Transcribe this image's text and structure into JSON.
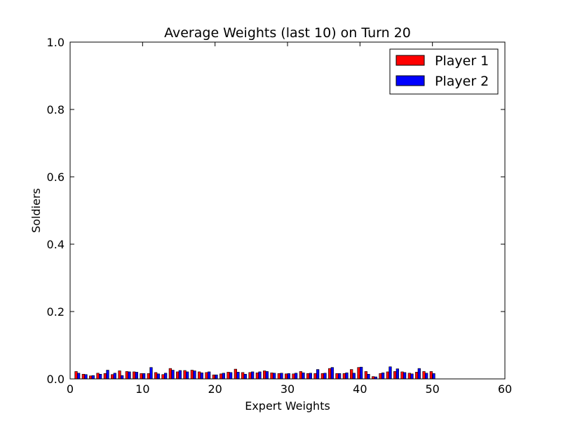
{
  "chart_data": {
    "type": "bar",
    "title": "Average Weights (last 10) on Turn 20",
    "xlabel": "Expert Weights",
    "ylabel": "Soldiers",
    "xlim": [
      0,
      60
    ],
    "ylim": [
      0,
      1.0
    ],
    "x_ticks": [
      "0",
      "10",
      "20",
      "30",
      "40",
      "50",
      "60"
    ],
    "y_ticks": [
      "0.0",
      "0.2",
      "0.4",
      "0.6",
      "0.8",
      "1.0"
    ],
    "grid": false,
    "legend_position": "top-right",
    "x": [
      1,
      2,
      3,
      4,
      5,
      6,
      7,
      8,
      9,
      10,
      11,
      12,
      13,
      14,
      15,
      16,
      17,
      18,
      19,
      20,
      21,
      22,
      23,
      24,
      25,
      26,
      27,
      28,
      29,
      30,
      31,
      32,
      33,
      34,
      35,
      36,
      37,
      38,
      39,
      40,
      41,
      42,
      43,
      44,
      45,
      46,
      47,
      48,
      49,
      50
    ],
    "series": [
      {
        "name": "Player 1",
        "color": "#ff0000",
        "values": [
          0.022,
          0.014,
          0.009,
          0.017,
          0.016,
          0.013,
          0.024,
          0.022,
          0.021,
          0.016,
          0.016,
          0.019,
          0.013,
          0.031,
          0.021,
          0.025,
          0.026,
          0.021,
          0.019,
          0.012,
          0.015,
          0.02,
          0.029,
          0.019,
          0.019,
          0.018,
          0.024,
          0.018,
          0.016,
          0.015,
          0.015,
          0.022,
          0.016,
          0.016,
          0.016,
          0.031,
          0.016,
          0.016,
          0.028,
          0.034,
          0.022,
          0.007,
          0.016,
          0.021,
          0.022,
          0.021,
          0.017,
          0.02,
          0.022,
          0.022
        ]
      },
      {
        "name": "Player 2",
        "color": "#0000ff",
        "values": [
          0.017,
          0.013,
          0.01,
          0.014,
          0.026,
          0.017,
          0.01,
          0.021,
          0.02,
          0.016,
          0.034,
          0.015,
          0.017,
          0.026,
          0.025,
          0.021,
          0.024,
          0.018,
          0.021,
          0.012,
          0.017,
          0.019,
          0.02,
          0.014,
          0.021,
          0.021,
          0.022,
          0.017,
          0.017,
          0.016,
          0.017,
          0.018,
          0.017,
          0.028,
          0.017,
          0.034,
          0.016,
          0.018,
          0.017,
          0.035,
          0.014,
          0.006,
          0.018,
          0.036,
          0.03,
          0.019,
          0.015,
          0.031,
          0.017,
          0.016
        ]
      }
    ]
  }
}
